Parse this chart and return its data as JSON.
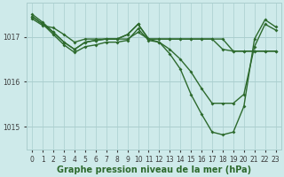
{
  "lines": [
    {
      "x": [
        0,
        1,
        2,
        3,
        4,
        5,
        6,
        7,
        8,
        9,
        10,
        11,
        12,
        13,
        14,
        15,
        16,
        17,
        18,
        19,
        20,
        21,
        22,
        23
      ],
      "y": [
        1017.4,
        1017.25,
        1017.2,
        1017.05,
        1016.88,
        1016.95,
        1016.95,
        1016.95,
        1016.95,
        1016.95,
        1017.1,
        1016.95,
        1016.95,
        1016.95,
        1016.95,
        1016.95,
        1016.95,
        1016.95,
        1016.95,
        1016.68,
        1016.68,
        1016.68,
        1016.68,
        1016.68
      ],
      "color": "#2d6a2d",
      "lw": 1.0,
      "marker": "D",
      "ms": 2.0
    },
    {
      "x": [
        0,
        1,
        2,
        3,
        4,
        5,
        6,
        7,
        8,
        9,
        10,
        11,
        12,
        13,
        14,
        15,
        16,
        17,
        18,
        19,
        20,
        21,
        22,
        23
      ],
      "y": [
        1017.45,
        1017.28,
        1017.05,
        1016.82,
        1016.65,
        1016.78,
        1016.82,
        1016.88,
        1016.88,
        1016.92,
        1017.18,
        1016.92,
        1016.88,
        1016.72,
        1016.5,
        1016.22,
        1015.85,
        1015.52,
        1015.52,
        1015.52,
        1015.72,
        1016.78,
        1017.28,
        1017.15
      ],
      "color": "#2d6a2d",
      "lw": 1.0,
      "marker": "D",
      "ms": 2.0
    },
    {
      "x": [
        0,
        1,
        2,
        3,
        4,
        5,
        6,
        7,
        8,
        9,
        10,
        11,
        12,
        13,
        14,
        15,
        16,
        17,
        18,
        19,
        20,
        21,
        22,
        23
      ],
      "y": [
        1017.5,
        1017.32,
        1017.1,
        1016.88,
        1016.72,
        1016.88,
        1016.92,
        1016.95,
        1016.95,
        1017.05,
        1017.28,
        1016.95,
        1016.88,
        1016.62,
        1016.28,
        1015.72,
        1015.28,
        1014.88,
        1014.82,
        1014.88,
        1015.45,
        1016.95,
        1017.38,
        1017.22
      ],
      "color": "#2d6a2d",
      "lw": 1.0,
      "marker": "D",
      "ms": 2.0
    },
    {
      "x": [
        0,
        1,
        2,
        3,
        4,
        5,
        6,
        7,
        8,
        9,
        10,
        11,
        12,
        13,
        14,
        15,
        16,
        17,
        18,
        19,
        20,
        21,
        22,
        23
      ],
      "y": [
        1017.45,
        1017.28,
        1017.1,
        1016.88,
        1016.72,
        1016.88,
        1016.92,
        1016.95,
        1016.95,
        1017.05,
        1017.28,
        1016.95,
        1016.95,
        1016.95,
        1016.95,
        1016.95,
        1016.95,
        1016.95,
        1016.72,
        1016.68,
        1016.68,
        1016.68,
        1016.68,
        1016.68
      ],
      "color": "#2d6a2d",
      "lw": 1.0,
      "marker": "D",
      "ms": 2.0
    }
  ],
  "xlim": [
    -0.5,
    23.5
  ],
  "ylim": [
    1014.5,
    1017.75
  ],
  "xticks": [
    0,
    1,
    2,
    3,
    4,
    5,
    6,
    7,
    8,
    9,
    10,
    11,
    12,
    13,
    14,
    15,
    16,
    17,
    18,
    19,
    20,
    21,
    22,
    23
  ],
  "yticks": [
    1015.0,
    1016.0,
    1017.0
  ],
  "ytick_labels": [
    "1015",
    "1016",
    "1017"
  ],
  "xlabel": "Graphe pression niveau de la mer (hPa)",
  "bg_color": "#ceeaea",
  "grid_color": "#aacece",
  "line_color": "#2d6a2d",
  "tick_color": "#3a3a3a",
  "label_color": "#2d6a2d",
  "tick_fontsize": 5.5,
  "xlabel_fontsize": 7.0
}
